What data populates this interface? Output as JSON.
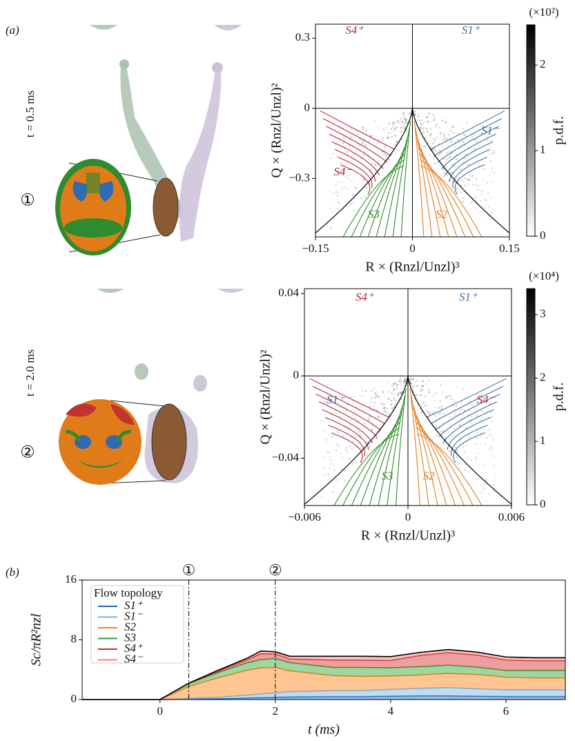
{
  "panels": {
    "a": "(a)",
    "b": "(b)"
  },
  "snapshots": [
    {
      "time": "t = 0.5 ms",
      "marker": "①"
    },
    {
      "time": "t = 2.0 ms",
      "marker": "②"
    }
  ],
  "chart_data": [
    {
      "type": "qr",
      "x_label": "R × (Rnzl/Unzl)³",
      "y_label": "Q × (Rnzl/Unzl)²",
      "xlim": [
        -0.15,
        0.15
      ],
      "ylim": [
        -0.55,
        0.36
      ],
      "xticks": [
        {
          "value": -0.15,
          "label": "−0.15"
        },
        0,
        0.15
      ],
      "yticks": [
        {
          "value": -0.3,
          "label": "−0.3"
        },
        0,
        0.3
      ],
      "annotations": [
        {
          "text": "S4⁺",
          "color": "#b3283b"
        },
        {
          "text": "S1⁺",
          "color": "#3a6d9a"
        },
        {
          "text": "S1⁻",
          "color": "#3a6d9a"
        },
        {
          "text": "S4⁻",
          "color": "#b3283b"
        },
        {
          "text": "S3",
          "color": "#2e8b2e"
        },
        {
          "text": "S2",
          "color": "#e07b1a"
        }
      ],
      "colorbar": {
        "lim": [
          0,
          2.47
        ],
        "ticks": [
          0,
          1,
          2
        ],
        "label": "p.d.f.",
        "scale_label": "(×10²)"
      }
    },
    {
      "type": "qr",
      "x_label": "R × (Rnzl/Unzl)³",
      "y_label": "Q × (Rnzl/Unzl)²",
      "xlim": [
        -0.006,
        0.006
      ],
      "ylim": [
        -0.063,
        0.0424
      ],
      "xticks": [
        {
          "value": -0.006,
          "label": "−0.006"
        },
        0,
        0.006
      ],
      "yticks": [
        {
          "value": -0.04,
          "label": "−0.04"
        },
        0,
        0.04
      ],
      "annotations": [
        {
          "text": "S4⁺",
          "color": "#b3283b"
        },
        {
          "text": "S1⁺",
          "color": "#3a6d9a"
        },
        {
          "text": "S1⁻",
          "color": "#3a6d9a"
        },
        {
          "text": "S4⁻",
          "color": "#b3283b"
        },
        {
          "text": "S3",
          "color": "#2e8b2e"
        },
        {
          "text": "S2",
          "color": "#e07b1a"
        }
      ],
      "colorbar": {
        "lim": [
          0,
          3.41
        ],
        "ticks": [
          0,
          1,
          2,
          3
        ],
        "label": "p.d.f.",
        "scale_label": "(×10⁴)"
      }
    },
    {
      "type": "stacked_area",
      "x_label": "t (ms)",
      "y_label": "Sc/πR²nzl",
      "legend_title": "Flow topology",
      "x": [
        -1.35,
        0,
        0.5,
        1,
        1.5,
        1.75,
        2,
        2.25,
        3,
        3.5,
        4,
        4.5,
        5,
        5.5,
        6,
        6.5,
        7.03
      ],
      "xlim": [
        -1.35,
        7.03
      ],
      "ylim": [
        0,
        16
      ],
      "xticks": [
        0,
        2,
        4,
        6
      ],
      "yticks": [
        0,
        8,
        16
      ],
      "markers": [
        {
          "x": 0.5,
          "label": "①"
        },
        {
          "x": 2,
          "label": "②"
        }
      ],
      "series": [
        {
          "name": "S1⁺",
          "color": "#1f66b0",
          "values": [
            0,
            0,
            0.05,
            0.1,
            0.2,
            0.25,
            0.3,
            0.35,
            0.4,
            0.4,
            0.45,
            0.5,
            0.5,
            0.45,
            0.4,
            0.4,
            0.4
          ]
        },
        {
          "name": "S1⁻",
          "color": "#6fb1e6",
          "values": [
            0,
            0,
            0.1,
            0.2,
            0.4,
            0.5,
            0.6,
            0.7,
            0.8,
            0.8,
            0.9,
            1.0,
            1.1,
            1.0,
            0.9,
            0.9,
            0.9
          ]
        },
        {
          "name": "S2",
          "color": "#ff7f0e",
          "values": [
            0,
            0,
            1.6,
            2.6,
            3.3,
            3.5,
            3.4,
            2.8,
            2.0,
            1.9,
            1.8,
            1.8,
            1.9,
            1.9,
            1.7,
            1.6,
            1.6
          ]
        },
        {
          "name": "S3",
          "color": "#2ca02c",
          "values": [
            0,
            0,
            0.4,
            0.7,
            1.0,
            1.1,
            1.2,
            1.1,
            1.1,
            1.2,
            1.1,
            1.1,
            1.1,
            1.0,
            0.9,
            1.0,
            1.0
          ]
        },
        {
          "name": "S4⁺",
          "color": "#d62728",
          "values": [
            0,
            0,
            0.03,
            0.15,
            0.4,
            0.8,
            0.6,
            0.5,
            1.0,
            1.0,
            1.0,
            1.5,
            1.7,
            1.6,
            1.4,
            1.3,
            1.3
          ]
        },
        {
          "name": "S4⁻",
          "color": "#f08080",
          "values": [
            0,
            0,
            0.02,
            0.15,
            0.2,
            0.35,
            0.3,
            0.35,
            0.5,
            0.5,
            0.5,
            0.4,
            0.4,
            0.4,
            0.4,
            0.4,
            0.4
          ]
        }
      ]
    }
  ]
}
